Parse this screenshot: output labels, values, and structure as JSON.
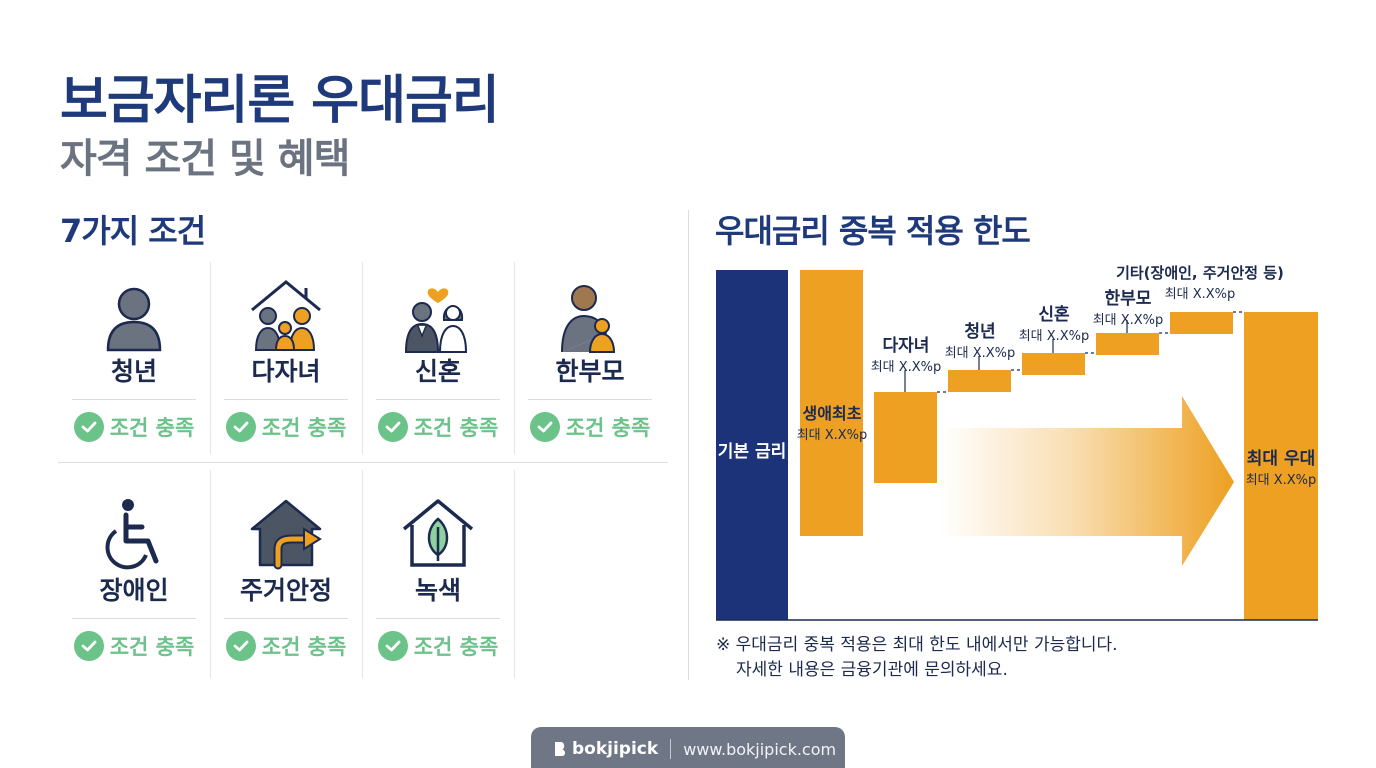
{
  "header": {
    "title": "보금자리론 우대금리",
    "subtitle": "자격 조건 및 혜택"
  },
  "conditions": {
    "heading": "7가지 조건",
    "items": [
      {
        "label": "청년",
        "status": "조건 충족",
        "icon": "person-icon"
      },
      {
        "label": "다자녀",
        "status": "조건 충족",
        "icon": "family-house-icon"
      },
      {
        "label": "신혼",
        "status": "조건 충족",
        "icon": "newlywed-couple-icon"
      },
      {
        "label": "한부모",
        "status": "조건 충족",
        "icon": "single-parent-icon"
      },
      {
        "label": "장애인",
        "status": "조건 충족",
        "icon": "wheelchair-icon"
      },
      {
        "label": "주거안정",
        "status": "조건 충족",
        "icon": "house-arrow-icon"
      },
      {
        "label": "녹색",
        "status": "조건 충족",
        "icon": "green-leaf-house-icon"
      }
    ]
  },
  "overlap": {
    "heading": "우대금리 중복 적용 한도",
    "note_line1": "※ 우대금리 중복 적용은 최대 한도 내에서만 가능합니다.",
    "note_line2": "자세한 내용은 금융기관에 문의하세요."
  },
  "chart_data": {
    "type": "waterfall",
    "colors": {
      "base": "#1c3279",
      "step": "#eda021"
    },
    "steps": [
      {
        "label": "기본 금리",
        "sub": "",
        "kind": "base"
      },
      {
        "label": "생애최초",
        "sub": "최대 X.X%p",
        "kind": "step"
      },
      {
        "label": "다자녀",
        "sub": "최대 X.X%p",
        "kind": "step"
      },
      {
        "label": "청년",
        "sub": "최대 X.X%p",
        "kind": "step"
      },
      {
        "label": "신혼",
        "sub": "최대 X.X%p",
        "kind": "step"
      },
      {
        "label": "한부모",
        "sub": "최대 X.X%p",
        "kind": "step"
      },
      {
        "label": "기타(장애인, 주거안정 등)",
        "sub": "최대 X.X%p",
        "kind": "step"
      },
      {
        "label": "최대 우대",
        "sub": "최대 X.X%p",
        "kind": "total"
      }
    ]
  },
  "footer": {
    "brand": "bokjipick",
    "url": "www.bokjipick.com"
  }
}
